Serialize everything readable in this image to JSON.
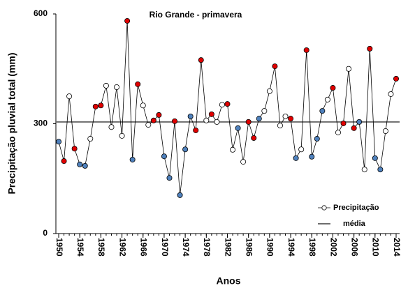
{
  "chart_data": {
    "type": "line",
    "title": "Rio Grande - primavera",
    "x_label": "Anos",
    "y_label": "Precipitação pluvial total (mm)",
    "x": [
      1950,
      1951,
      1952,
      1953,
      1954,
      1955,
      1956,
      1957,
      1958,
      1959,
      1960,
      1961,
      1962,
      1963,
      1964,
      1965,
      1966,
      1967,
      1968,
      1969,
      1970,
      1971,
      1972,
      1973,
      1974,
      1975,
      1976,
      1977,
      1978,
      1979,
      1980,
      1981,
      1982,
      1983,
      1984,
      1985,
      1986,
      1987,
      1988,
      1989,
      1990,
      1991,
      1992,
      1993,
      1994,
      1995,
      1996,
      1997,
      1998,
      1999,
      2000,
      2001,
      2002,
      2003,
      2004,
      2005,
      2006,
      2007,
      2008,
      2009,
      2010,
      2011,
      2012,
      2013,
      2014
    ],
    "series": [
      {
        "name": "Precipitação",
        "color": "#000000",
        "values": [
          251,
          198,
          375,
          232,
          189,
          185,
          259,
          347,
          350,
          404,
          291,
          400,
          267,
          581,
          202,
          408,
          350,
          297,
          309,
          324,
          211,
          152,
          307,
          105,
          230,
          320,
          282,
          474,
          309,
          326,
          305,
          352,
          354,
          229,
          288,
          196,
          305,
          261,
          314,
          335,
          389,
          457,
          295,
          320,
          314,
          206,
          230,
          501,
          210,
          259,
          335,
          366,
          398,
          276,
          301,
          450,
          288,
          305,
          175,
          505,
          206,
          175,
          280,
          381,
          423
        ],
        "marker_colors": [
          "#4f81bd",
          "#e00000",
          "#ffffff",
          "#e00000",
          "#4f81bd",
          "#4f81bd",
          "#ffffff",
          "#e00000",
          "#e00000",
          "#ffffff",
          "#ffffff",
          "#ffffff",
          "#ffffff",
          "#e00000",
          "#4f81bd",
          "#e00000",
          "#ffffff",
          "#ffffff",
          "#e00000",
          "#e00000",
          "#4f81bd",
          "#4f81bd",
          "#e00000",
          "#4f81bd",
          "#4f81bd",
          "#4f81bd",
          "#e00000",
          "#e00000",
          "#ffffff",
          "#e00000",
          "#ffffff",
          "#ffffff",
          "#e00000",
          "#ffffff",
          "#4f81bd",
          "#ffffff",
          "#e00000",
          "#e00000",
          "#4f81bd",
          "#ffffff",
          "#ffffff",
          "#e00000",
          "#ffffff",
          "#ffffff",
          "#e00000",
          "#4f81bd",
          "#ffffff",
          "#e00000",
          "#4f81bd",
          "#4f81bd",
          "#4f81bd",
          "#ffffff",
          "#e00000",
          "#ffffff",
          "#e00000",
          "#ffffff",
          "#e00000",
          "#4f81bd",
          "#ffffff",
          "#e00000",
          "#4f81bd",
          "#4f81bd",
          "#ffffff",
          "#ffffff",
          "#e00000"
        ]
      }
    ],
    "reference_line": {
      "name": "média",
      "value": 305,
      "color": "#6d6d6d"
    },
    "xlim": [
      1950,
      2014
    ],
    "xticks": [
      1950,
      1954,
      1958,
      1962,
      1966,
      1970,
      1974,
      1978,
      1982,
      1986,
      1990,
      1994,
      1998,
      2002,
      2006,
      2010,
      2014
    ],
    "ylim": [
      0,
      600
    ],
    "yticks": [
      0,
      300,
      600
    ],
    "legend": "lower-right"
  }
}
